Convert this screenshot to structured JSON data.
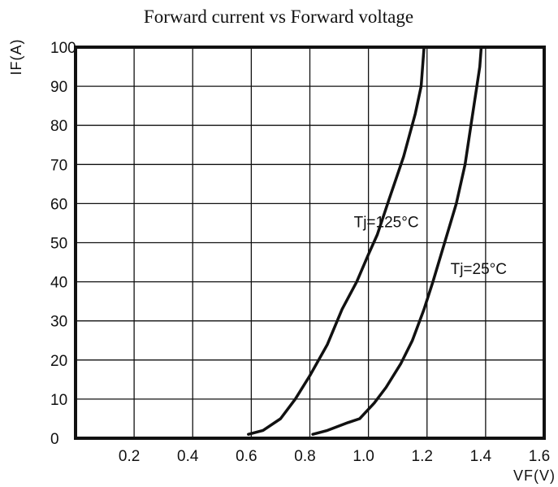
{
  "chart_data": {
    "type": "line",
    "title": "Forward current vs Forward voltage",
    "xlabel": "VF(V)",
    "ylabel": "IF(A)",
    "xlim": [
      0,
      1.6
    ],
    "ylim": [
      0,
      100
    ],
    "x_ticks": [
      "0.2",
      "0.4",
      "0.6",
      "0.8",
      "1.0",
      "1.2",
      "1.4",
      "1.6"
    ],
    "y_ticks": [
      "0",
      "10",
      "20",
      "30",
      "40",
      "50",
      "60",
      "70",
      "80",
      "90",
      "100"
    ],
    "grid": true,
    "series": [
      {
        "name": "Tj=125°C",
        "points": [
          [
            0.59,
            1
          ],
          [
            0.64,
            2
          ],
          [
            0.7,
            5
          ],
          [
            0.75,
            10
          ],
          [
            0.8,
            16
          ],
          [
            0.86,
            24
          ],
          [
            0.91,
            33
          ],
          [
            0.96,
            40
          ],
          [
            1.0,
            47
          ],
          [
            1.03,
            52
          ],
          [
            1.07,
            61
          ],
          [
            1.12,
            72
          ],
          [
            1.16,
            83
          ],
          [
            1.18,
            90
          ],
          [
            1.185,
            95
          ],
          [
            1.19,
            100
          ]
        ]
      },
      {
        "name": "Tj=25°C",
        "points": [
          [
            0.81,
            1
          ],
          [
            0.86,
            2
          ],
          [
            0.93,
            4
          ],
          [
            0.97,
            5
          ],
          [
            1.02,
            9
          ],
          [
            1.06,
            13
          ],
          [
            1.11,
            19
          ],
          [
            1.15,
            25
          ],
          [
            1.19,
            33
          ],
          [
            1.22,
            40
          ],
          [
            1.26,
            50
          ],
          [
            1.3,
            60
          ],
          [
            1.33,
            70
          ],
          [
            1.35,
            80
          ],
          [
            1.37,
            90
          ],
          [
            1.38,
            95
          ],
          [
            1.385,
            100
          ]
        ]
      }
    ],
    "annotations": [
      {
        "text": "Tj=125°C",
        "x": 0.95,
        "y": 54
      },
      {
        "text": "Tj=25°C",
        "x": 1.28,
        "y": 42
      }
    ]
  }
}
